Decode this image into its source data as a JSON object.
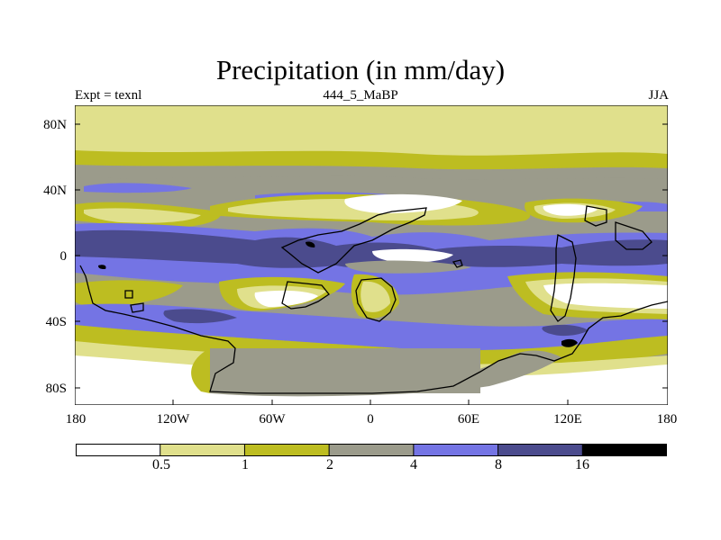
{
  "title": "Precipitation (in mm/day)",
  "left_label": "Expt = texnl",
  "center_label": "444_5_MaBP",
  "right_label": "JJA",
  "lat_ticks": [
    "80N",
    "40N",
    "0",
    "40S",
    "80S"
  ],
  "lon_ticks": [
    "180",
    "120W",
    "60W",
    "0",
    "60E",
    "120E",
    "180"
  ],
  "legend": {
    "labels": [
      "0.5",
      "1",
      "2",
      "4",
      "8",
      "16"
    ],
    "colors": [
      "#ffffff",
      "#e0e08c",
      "#bdbd21",
      "#9b9b8b",
      "#7474e4",
      "#4b4b8d",
      "#000000"
    ]
  }
}
